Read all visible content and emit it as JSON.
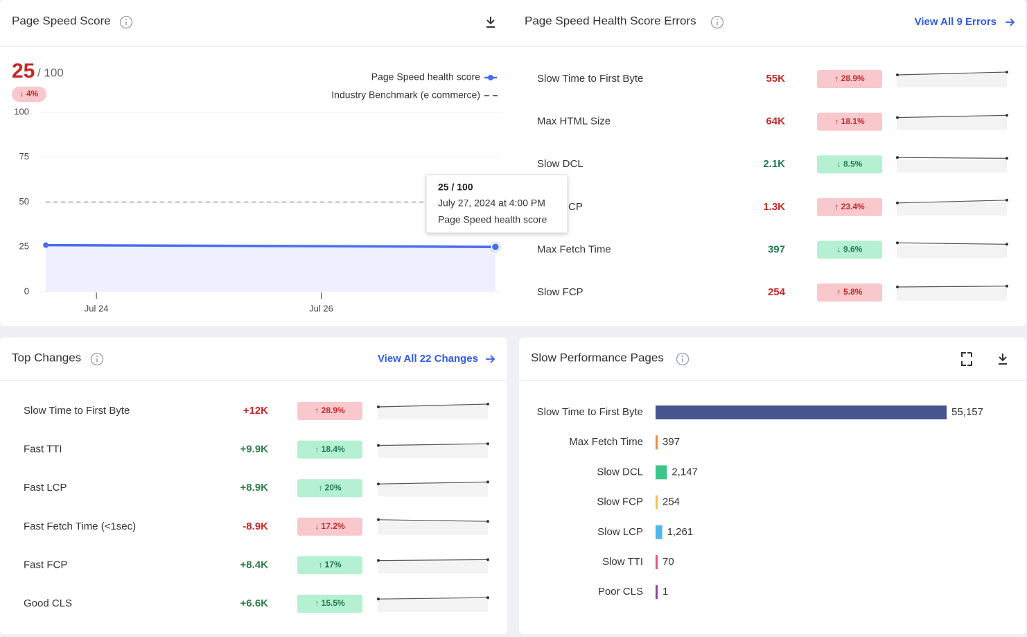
{
  "score_panel": {
    "title": "Page Speed Score",
    "score": 25,
    "score_max": "/ 100",
    "change": "↓ 4%",
    "chart": {
      "type": "line",
      "x": [
        23.55,
        27.55
      ],
      "xlim": [
        23.5,
        27.6
      ],
      "xticks": [
        {
          "value": 24,
          "label": "Jul 24"
        },
        {
          "value": 26,
          "label": "Jul 26"
        }
      ],
      "ylim": [
        0,
        100
      ],
      "yticks": [
        0,
        25,
        50,
        75,
        100
      ],
      "grid": true,
      "series": [
        {
          "name": "Page Speed health score",
          "color": "#4a6cf0",
          "values": [
            26,
            25
          ]
        },
        {
          "name": "Industry Benchmark (e commerce)",
          "color": "#9a9a9a",
          "dashed": true,
          "values": [
            50,
            50
          ]
        }
      ]
    },
    "tooltip": {
      "value": "25 / 100",
      "date": "July 27, 2024 at 4:00 PM",
      "series": "Page Speed health score"
    }
  },
  "errors": {
    "title": "Page Speed Health Score Errors",
    "link": "View All 9 Errors",
    "rows": [
      {
        "name": "Slow Time to First Byte",
        "count": "55K",
        "change": "↑ 28.9%",
        "color": "#c62828",
        "badge_color": "#f9c8cc",
        "trend": [
          7,
          8
        ]
      },
      {
        "name": "Max HTML Size",
        "count": "64K",
        "change": "↑ 18.1%",
        "color": "#c62828",
        "badge_color": "#f9c8cc",
        "trend": [
          7,
          7.8
        ]
      },
      {
        "name": "Slow DCL",
        "count": "2.1K",
        "change": "↓ 8.5%",
        "color": "#1f7a4d",
        "badge_color": "#b5f0d3",
        "trend": [
          8,
          7.7
        ]
      },
      {
        "name": "Slow LCP",
        "count": "1.3K",
        "change": "↑ 23.4%",
        "color": "#c62828",
        "badge_color": "#f9c8cc",
        "trend": [
          7,
          8
        ]
      },
      {
        "name": "Max Fetch Time",
        "count": "397",
        "change": "↓ 9.6%",
        "color": "#1f7a4d",
        "badge_color": "#b5f0d3",
        "trend": [
          8,
          7.5
        ]
      },
      {
        "name": "Slow FCP",
        "count": "254",
        "change": "↑ 5.8%",
        "color": "#c62828",
        "badge_color": "#f9c8cc",
        "trend": [
          7.5,
          7.8
        ]
      }
    ]
  },
  "changes": {
    "title": "Top Changes",
    "link": "View All 22 Changes",
    "rows": [
      {
        "name": "Slow Time to First Byte",
        "value": "+12K",
        "change": "↑ 28.9%",
        "color": "#c62828",
        "badge_color": "#f9c8cc",
        "trend": [
          7,
          8
        ]
      },
      {
        "name": "Fast TTI",
        "value": "+9.9K",
        "change": "↑ 18.4%",
        "color": "#2e7d4f",
        "badge_color": "#b5f0d3",
        "trend": [
          7,
          7.6
        ]
      },
      {
        "name": "Fast LCP",
        "value": "+8.9K",
        "change": "↑ 20%",
        "color": "#2e7d4f",
        "badge_color": "#b5f0d3",
        "trend": [
          7,
          7.7
        ]
      },
      {
        "name": "Fast Fetch Time (<1sec)",
        "value": "-8.9K",
        "change": "↓ 17.2%",
        "color": "#c62828",
        "badge_color": "#f9c8cc",
        "trend": [
          8,
          7.4
        ]
      },
      {
        "name": "Fast FCP",
        "value": "+8.4K",
        "change": "↑ 17%",
        "color": "#2e7d4f",
        "badge_color": "#b5f0d3",
        "trend": [
          7.2,
          7.5
        ]
      },
      {
        "name": "Good CLS",
        "value": "+6.6K",
        "change": "↑ 15.5%",
        "color": "#2e7d4f",
        "badge_color": "#b5f0d3",
        "trend": [
          7.2,
          7.7
        ]
      }
    ]
  },
  "slow_pages": {
    "title": "Slow Performance Pages",
    "chart": {
      "type": "bar",
      "orientation": "horizontal",
      "categories": [
        "Slow Time to First Byte",
        "Max Fetch Time",
        "Slow DCL",
        "Slow FCP",
        "Slow LCP",
        "Slow TTI",
        "Poor CLS"
      ],
      "values": [
        55157,
        397,
        2147,
        254,
        1261,
        70,
        1
      ],
      "value_labels": [
        "55,157",
        "397",
        "2,147",
        "254",
        "1,261",
        "70",
        "1"
      ],
      "colors": [
        "#47558f",
        "#f0883e",
        "#3cc58a",
        "#f2c14e",
        "#4fb8e8",
        "#e8537a",
        "#8e3fa8"
      ]
    }
  }
}
